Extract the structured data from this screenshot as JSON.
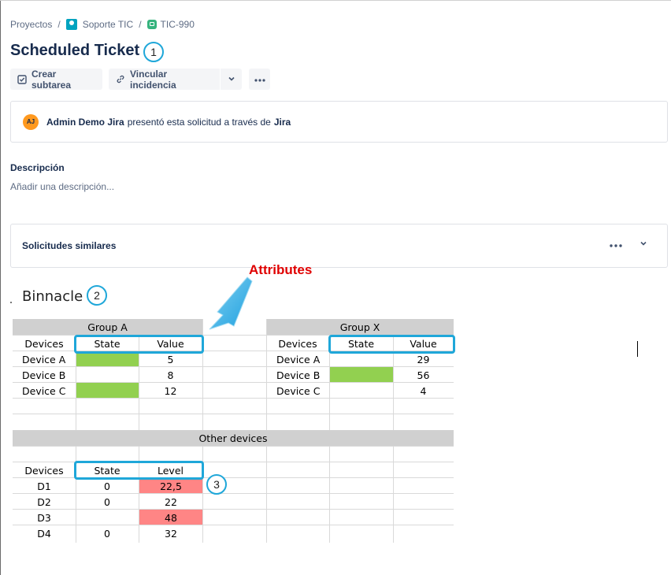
{
  "breadcrumb": {
    "projects": "Proyectos",
    "separator": "/",
    "project": "Soporte TIC",
    "ticket": "TIC-990"
  },
  "title": "Scheduled Ticket",
  "callouts": [
    "1",
    "2",
    "3"
  ],
  "toolbar": {
    "create_subtask": "Crear subtarea",
    "link_issue": "Vincular incidencia",
    "dropdown_icon": "chevron-down-icon",
    "more_icon": "more-icon"
  },
  "requester": {
    "avatar_initials": "AJ",
    "name": "Admin Demo Jira",
    "action": "presentó esta solicitud a través de",
    "channel": "Jira"
  },
  "description": {
    "label": "Descripción",
    "placeholder": "Añadir una descripción..."
  },
  "similar_requests": {
    "label": "Solicitudes similares"
  },
  "annotation": "Attributes",
  "binnacle_title": "Binnacle",
  "sheet": {
    "group_a": {
      "title": "Group A",
      "headers": [
        "Devices",
        "State",
        "Value"
      ],
      "rows": [
        {
          "device": "Device A",
          "state": "",
          "state_color": "#92d050",
          "value": "5"
        },
        {
          "device": "Device B",
          "state": "",
          "state_color": "",
          "value": "8"
        },
        {
          "device": "Device C",
          "state": "",
          "state_color": "#92d050",
          "value": "12"
        }
      ]
    },
    "group_x": {
      "title": "Group X",
      "headers": [
        "Devices",
        "State",
        "Value"
      ],
      "rows": [
        {
          "device": "Device A",
          "state": "",
          "state_color": "",
          "value": "29"
        },
        {
          "device": "Device B",
          "state": "",
          "state_color": "#92d050",
          "value": "56"
        },
        {
          "device": "Device C",
          "state": "",
          "state_color": "",
          "value": "4"
        }
      ]
    },
    "other": {
      "title": "Other devices",
      "headers": [
        "Devices",
        "State",
        "Level"
      ],
      "rows": [
        {
          "device": "D1",
          "state": "0",
          "level": "22,5",
          "level_color": "#ff8585"
        },
        {
          "device": "D2",
          "state": "0",
          "level": "22",
          "level_color": ""
        },
        {
          "device": "D3",
          "state": "",
          "level": "48",
          "level_color": "#ff8585"
        },
        {
          "device": "D4",
          "state": "0",
          "level": "32",
          "level_color": ""
        }
      ]
    }
  },
  "colors": {
    "accent": "#1fa7d9",
    "annotation": "#e00000",
    "green_state": "#92d050",
    "red_level": "#ff8585",
    "header_band": "#d0d0d0"
  }
}
